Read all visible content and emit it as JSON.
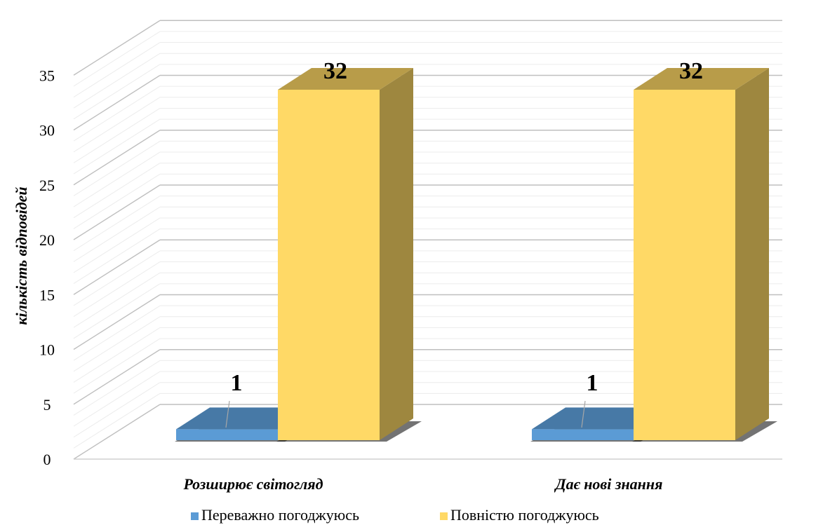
{
  "chart_data": {
    "type": "bar",
    "categories": [
      "Розширює світогляд",
      "Дає нові знання"
    ],
    "series": [
      {
        "name": "Переважно погоджуюсь",
        "values": [
          1,
          1
        ],
        "color": "#5B9BD5"
      },
      {
        "name": "Повністю погоджуюсь",
        "values": [
          32,
          32
        ],
        "color": "#FFD966"
      }
    ],
    "ylabel": "кількість відповідей",
    "ylim": [
      0,
      35
    ],
    "yticks": [
      0,
      5,
      10,
      15,
      20,
      25,
      30,
      35
    ],
    "grid": true,
    "legend_position": "bottom",
    "style": "3d-column"
  }
}
